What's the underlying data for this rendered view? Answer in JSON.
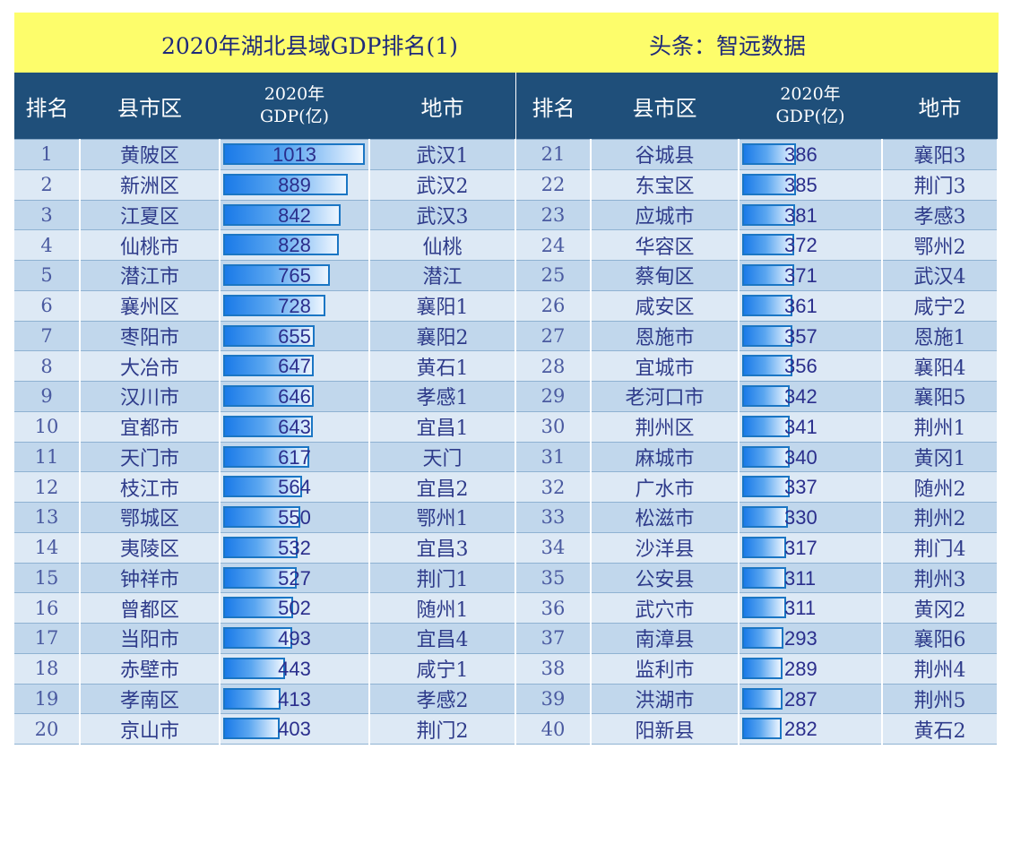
{
  "header": {
    "title": "2020年湖北县域GDP排名(1)",
    "source": "头条：智远数据"
  },
  "columns": {
    "rank": "排名",
    "county": "县市区",
    "gdp_line1": "2020年",
    "gdp_line2": "GDP(亿)",
    "city": "地市"
  },
  "colors": {
    "title_bg": "#fdfd6b",
    "header_bg": "#1f4f7a",
    "row_dark": "#c1d7ec",
    "row_light": "#dde9f5",
    "bar": "#1a7ae8"
  },
  "max_gdp": 1013,
  "rows_left": [
    {
      "rank": "1",
      "county": "黄陂区",
      "gdp": 1013,
      "city": "武汉1"
    },
    {
      "rank": "2",
      "county": "新洲区",
      "gdp": 889,
      "city": "武汉2"
    },
    {
      "rank": "3",
      "county": "江夏区",
      "gdp": 842,
      "city": "武汉3"
    },
    {
      "rank": "4",
      "county": "仙桃市",
      "gdp": 828,
      "city": "仙桃"
    },
    {
      "rank": "5",
      "county": "潜江市",
      "gdp": 765,
      "city": "潜江"
    },
    {
      "rank": "6",
      "county": "襄州区",
      "gdp": 728,
      "city": "襄阳1"
    },
    {
      "rank": "7",
      "county": "枣阳市",
      "gdp": 655,
      "city": "襄阳2"
    },
    {
      "rank": "8",
      "county": "大冶市",
      "gdp": 647,
      "city": "黄石1"
    },
    {
      "rank": "9",
      "county": "汉川市",
      "gdp": 646,
      "city": "孝感1"
    },
    {
      "rank": "10",
      "county": "宜都市",
      "gdp": 643,
      "city": "宜昌1"
    },
    {
      "rank": "11",
      "county": "天门市",
      "gdp": 617,
      "city": "天门"
    },
    {
      "rank": "12",
      "county": "枝江市",
      "gdp": 564,
      "city": "宜昌2"
    },
    {
      "rank": "13",
      "county": "鄂城区",
      "gdp": 550,
      "city": "鄂州1"
    },
    {
      "rank": "14",
      "county": "夷陵区",
      "gdp": 532,
      "city": "宜昌3"
    },
    {
      "rank": "15",
      "county": "钟祥市",
      "gdp": 527,
      "city": "荆门1"
    },
    {
      "rank": "16",
      "county": "曾都区",
      "gdp": 502,
      "city": "随州1"
    },
    {
      "rank": "17",
      "county": "当阳市",
      "gdp": 493,
      "city": "宜昌4"
    },
    {
      "rank": "18",
      "county": "赤壁市",
      "gdp": 443,
      "city": "咸宁1"
    },
    {
      "rank": "19",
      "county": "孝南区",
      "gdp": 413,
      "city": "孝感2"
    },
    {
      "rank": "20",
      "county": "京山市",
      "gdp": 403,
      "city": "荆门2"
    }
  ],
  "rows_right": [
    {
      "rank": "21",
      "county": "谷城县",
      "gdp": 386,
      "city": "襄阳3"
    },
    {
      "rank": "22",
      "county": "东宝区",
      "gdp": 385,
      "city": "荆门3"
    },
    {
      "rank": "23",
      "county": "应城市",
      "gdp": 381,
      "city": "孝感3"
    },
    {
      "rank": "24",
      "county": "华容区",
      "gdp": 372,
      "city": "鄂州2"
    },
    {
      "rank": "25",
      "county": "蔡甸区",
      "gdp": 371,
      "city": "武汉4"
    },
    {
      "rank": "26",
      "county": "咸安区",
      "gdp": 361,
      "city": "咸宁2"
    },
    {
      "rank": "27",
      "county": "恩施市",
      "gdp": 357,
      "city": "恩施1"
    },
    {
      "rank": "28",
      "county": "宜城市",
      "gdp": 356,
      "city": "襄阳4"
    },
    {
      "rank": "29",
      "county": "老河口市",
      "gdp": 342,
      "city": "襄阳5"
    },
    {
      "rank": "30",
      "county": "荆州区",
      "gdp": 341,
      "city": "荆州1"
    },
    {
      "rank": "31",
      "county": "麻城市",
      "gdp": 340,
      "city": "黄冈1"
    },
    {
      "rank": "32",
      "county": "广水市",
      "gdp": 337,
      "city": "随州2"
    },
    {
      "rank": "33",
      "county": "松滋市",
      "gdp": 330,
      "city": "荆州2"
    },
    {
      "rank": "34",
      "county": "沙洋县",
      "gdp": 317,
      "city": "荆门4"
    },
    {
      "rank": "35",
      "county": "公安县",
      "gdp": 311,
      "city": "荆州3"
    },
    {
      "rank": "36",
      "county": "武穴市",
      "gdp": 311,
      "city": "黄冈2"
    },
    {
      "rank": "37",
      "county": "南漳县",
      "gdp": 293,
      "city": "襄阳6"
    },
    {
      "rank": "38",
      "county": "监利市",
      "gdp": 289,
      "city": "荆州4"
    },
    {
      "rank": "39",
      "county": "洪湖市",
      "gdp": 287,
      "city": "荆州5"
    },
    {
      "rank": "40",
      "county": "阳新县",
      "gdp": 282,
      "city": "黄石2"
    }
  ]
}
